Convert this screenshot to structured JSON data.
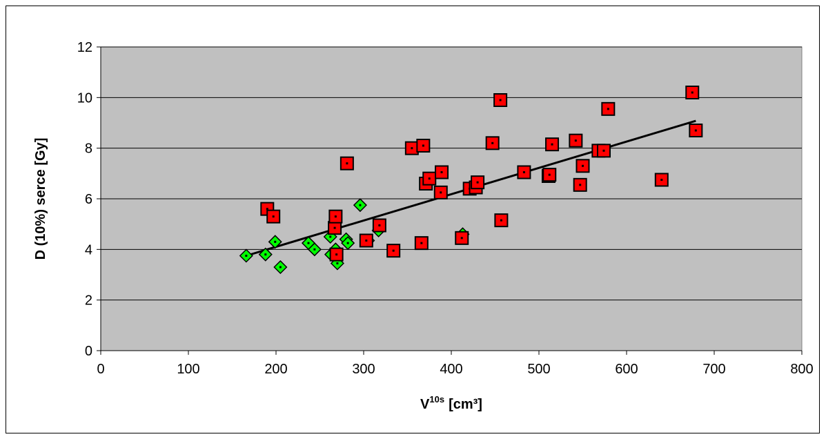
{
  "chart_data": {
    "type": "scatter",
    "title": "",
    "xlabel": "V",
    "xlabel_superscript": "10s",
    "xlabel_unit": "[cm³]",
    "ylabel": "D (10%) serce [Gy]",
    "xlim": [
      0,
      800
    ],
    "ylim": [
      0,
      12
    ],
    "x_ticks": [
      "0",
      "100",
      "200",
      "300",
      "400",
      "500",
      "600",
      "700",
      "800"
    ],
    "y_ticks": [
      "0",
      "2",
      "4",
      "6",
      "8",
      "10",
      "12"
    ],
    "grid": "horizontal",
    "legend": "none",
    "plot_bg": "#C0C0C0",
    "series": [
      {
        "marker": "diamond",
        "color": "#00FF00",
        "points": [
          [
            166,
            3.75
          ],
          [
            188,
            3.8
          ],
          [
            199,
            4.3
          ],
          [
            205,
            3.3
          ],
          [
            237,
            4.25
          ],
          [
            244,
            4.0
          ],
          [
            262,
            4.5
          ],
          [
            263,
            3.8
          ],
          [
            268,
            4.0
          ],
          [
            270,
            3.45
          ],
          [
            280,
            4.4
          ],
          [
            282,
            4.25
          ],
          [
            296,
            5.75
          ],
          [
            317,
            4.75
          ],
          [
            305,
            4.35
          ],
          [
            413,
            4.6
          ]
        ]
      },
      {
        "marker": "square",
        "color": "#FF0000",
        "points": [
          [
            190,
            5.6
          ],
          [
            197,
            5.3
          ],
          [
            267,
            4.85
          ],
          [
            268,
            5.3
          ],
          [
            269,
            3.8
          ],
          [
            281,
            7.4
          ],
          [
            303,
            4.35
          ],
          [
            318,
            4.95
          ],
          [
            334,
            3.95
          ],
          [
            355,
            8.0
          ],
          [
            366,
            4.25
          ],
          [
            368,
            8.1
          ],
          [
            371,
            6.6
          ],
          [
            375,
            6.8
          ],
          [
            388,
            6.25
          ],
          [
            389,
            7.05
          ],
          [
            412,
            4.45
          ],
          [
            421,
            6.4
          ],
          [
            428,
            6.45
          ],
          [
            430,
            6.65
          ],
          [
            447,
            8.2
          ],
          [
            456,
            9.9
          ],
          [
            457,
            5.15
          ],
          [
            483,
            7.05
          ],
          [
            511,
            6.9
          ],
          [
            512,
            6.95
          ],
          [
            515,
            8.15
          ],
          [
            542,
            8.3
          ],
          [
            547,
            6.55
          ],
          [
            550,
            7.3
          ],
          [
            568,
            7.9
          ],
          [
            574,
            7.9
          ],
          [
            579,
            9.55
          ],
          [
            640,
            6.75
          ],
          [
            675,
            10.2
          ],
          [
            679,
            8.7
          ]
        ]
      }
    ],
    "trendline": {
      "x": [
        166,
        679
      ],
      "y": [
        3.75,
        9.08
      ],
      "color": "#000000"
    }
  }
}
